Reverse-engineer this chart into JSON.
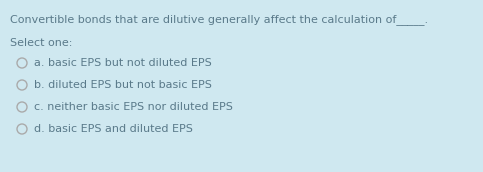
{
  "background_color": "#cfe8f0",
  "question_text": "Convertible bonds that are dilutive generally affect the calculation of_____.",
  "select_label": "Select one:",
  "options": [
    "a. basic EPS but not diluted EPS",
    "b. diluted EPS but not basic EPS",
    "c. neither basic EPS nor diluted EPS",
    "d. basic EPS and diluted EPS"
  ],
  "text_color": "#5a7a8a",
  "circle_edge_color": "#aaaaaa",
  "font_size_question": 8.0,
  "font_size_select": 8.0,
  "font_size_options": 8.0,
  "fig_width": 4.83,
  "fig_height": 1.72,
  "dpi": 100
}
